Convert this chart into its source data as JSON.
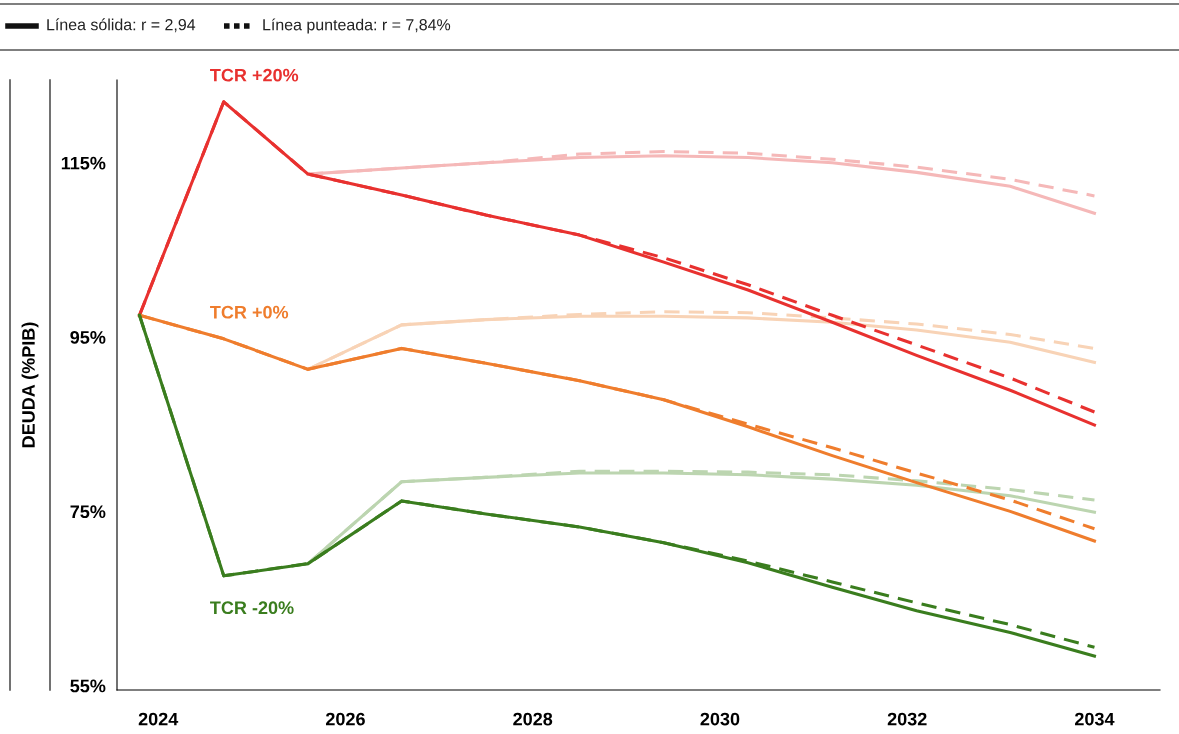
{
  "chart_data": {
    "type": "line",
    "ylabel": "DEUDA (%PIB)",
    "x": [
      2023.8,
      2024.7,
      2025.6,
      2026.6,
      2027.5,
      2028.5,
      2029.4,
      2030.3,
      2031.2,
      2032.1,
      2033.1,
      2034.0
    ],
    "series": [
      {
        "color": "#f5b8b8",
        "line_style": "solid",
        "values": [
          null,
          null,
          113.7,
          114.4,
          115.0,
          115.6,
          115.8,
          115.6,
          115.0,
          113.9,
          112.3,
          109.2
        ]
      },
      {
        "color": "#f5b8b8",
        "line_style": "dashed",
        "values": [
          null,
          null,
          113.7,
          114.4,
          115.0,
          116.0,
          116.3,
          116.1,
          115.4,
          114.5,
          113.1,
          111.2
        ]
      },
      {
        "color": "#f8d3b6",
        "line_style": "solid",
        "values": [
          null,
          null,
          91.3,
          96.4,
          97.0,
          97.4,
          97.4,
          97.2,
          96.7,
          95.8,
          94.4,
          92.1
        ]
      },
      {
        "color": "#f8d3b6",
        "line_style": "dashed",
        "values": [
          null,
          null,
          91.3,
          96.4,
          97.0,
          97.6,
          97.9,
          97.8,
          97.2,
          96.5,
          95.3,
          93.7
        ]
      },
      {
        "color": "#bcd5b0",
        "line_style": "solid",
        "values": [
          null,
          null,
          69.0,
          78.4,
          78.9,
          79.4,
          79.4,
          79.2,
          78.7,
          78.0,
          76.8,
          74.9
        ]
      },
      {
        "color": "#bcd5b0",
        "line_style": "dashed",
        "values": [
          null,
          null,
          69.0,
          78.4,
          78.9,
          79.6,
          79.6,
          79.5,
          79.2,
          78.5,
          77.5,
          76.3
        ]
      },
      {
        "color": "#e8312f",
        "line_style": "dashed",
        "values": [
          97.5,
          122.0,
          113.7,
          111.3,
          109.0,
          106.7,
          104.1,
          101.0,
          97.5,
          94.1,
          90.3,
          86.4
        ]
      },
      {
        "name": "TCR +20%",
        "color": "#e8312f",
        "line_style": "solid",
        "values": [
          97.5,
          122.0,
          113.7,
          111.3,
          109.0,
          106.7,
          103.6,
          100.4,
          96.7,
          92.9,
          88.9,
          84.9
        ]
      },
      {
        "color": "#ef7d2d",
        "line_style": "dashed",
        "values": [
          97.5,
          94.8,
          91.3,
          93.7,
          92.0,
          90.0,
          87.8,
          85.0,
          82.3,
          79.4,
          76.3,
          73.0
        ]
      },
      {
        "name": "TCR +0%",
        "color": "#ef7d2d",
        "line_style": "solid",
        "values": [
          97.5,
          94.8,
          91.3,
          93.7,
          92.0,
          90.0,
          87.8,
          84.7,
          81.4,
          78.3,
          75.0,
          71.6
        ]
      },
      {
        "color": "#3a7d1e",
        "line_style": "dashed",
        "values": [
          97.5,
          67.6,
          69.0,
          76.2,
          74.7,
          73.2,
          71.4,
          69.3,
          66.9,
          64.5,
          62.0,
          59.4
        ]
      },
      {
        "name": "TCR -20%",
        "color": "#3a7d1e",
        "line_style": "solid",
        "values": [
          97.5,
          67.6,
          69.0,
          76.2,
          74.7,
          73.2,
          71.4,
          69.1,
          66.3,
          63.6,
          61.1,
          58.4
        ]
      }
    ],
    "annotations": [
      "Línea sólida: r = 2,94",
      "Línea punteada: r = 7,84%"
    ],
    "xlim": [
      2023.56,
      2034.7
    ],
    "xticks": [
      2024,
      2026,
      2028,
      2030,
      2032,
      2034
    ],
    "ylim": [
      54.5,
      124.5
    ],
    "yticks": [
      {
        "value": 55,
        "label": "55%"
      },
      {
        "value": 75,
        "label": "75%"
      },
      {
        "value": 95,
        "label": "95%"
      },
      {
        "value": 115,
        "label": "115%"
      }
    ],
    "grid": false
  }
}
